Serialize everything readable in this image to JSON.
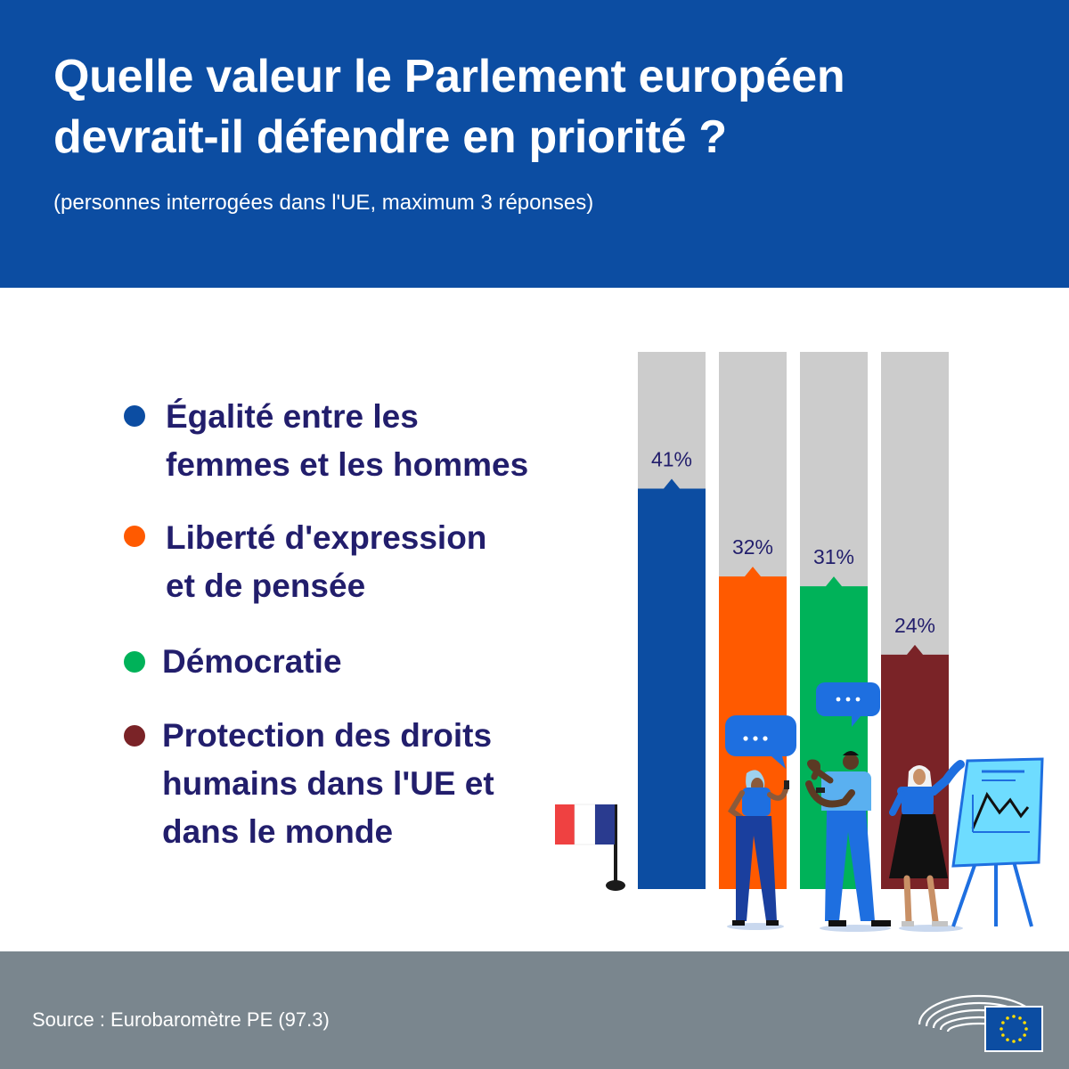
{
  "header": {
    "title_line1": "Quelle valeur le Parlement européen",
    "title_line2": "devrait-il défendre en priorité ?",
    "subtitle": "(personnes interrogées dans l'UE, maximum 3 réponses)"
  },
  "legend": [
    {
      "line1": "Égalité entre les",
      "line2": "femmes et les hommes",
      "line3": "",
      "color": "#0c4da2"
    },
    {
      "line1": "Liberté d'expression",
      "line2": "et de pensée",
      "line3": "",
      "color": "#ff5a00"
    },
    {
      "line1": "Démocratie",
      "line2": "",
      "line3": "",
      "color": "#00b259"
    },
    {
      "line1": "Protection des droits",
      "line2": "humains dans l'UE et",
      "line3": "dans le monde",
      "color": "#7a2327"
    }
  ],
  "chart_data": {
    "type": "bar",
    "title": "Quelle valeur le Parlement européen devrait-il défendre en priorité ?",
    "categories": [
      "Égalité entre les femmes et les hommes",
      "Liberté d'expression et de pensée",
      "Démocratie",
      "Protection des droits humains dans l'UE et dans le monde"
    ],
    "values": [
      41,
      32,
      31,
      24
    ],
    "value_labels": [
      "41%",
      "32%",
      "31%",
      "24%"
    ],
    "colors": [
      "#0c4da2",
      "#ff5a00",
      "#00b259",
      "#7a2327"
    ],
    "background_color": "#cccccc",
    "label_color": "#221e6c",
    "ylim": [
      0,
      55
    ],
    "grid": false,
    "legend": "left"
  },
  "footer": {
    "source": "Source : Eurobaromètre PE (97.3)"
  },
  "icons": [
    "france-flag-icon",
    "speech-bubble-icon",
    "people-illustration",
    "presentation-board-icon",
    "european-parliament-logo",
    "eu-flag-icon"
  ]
}
